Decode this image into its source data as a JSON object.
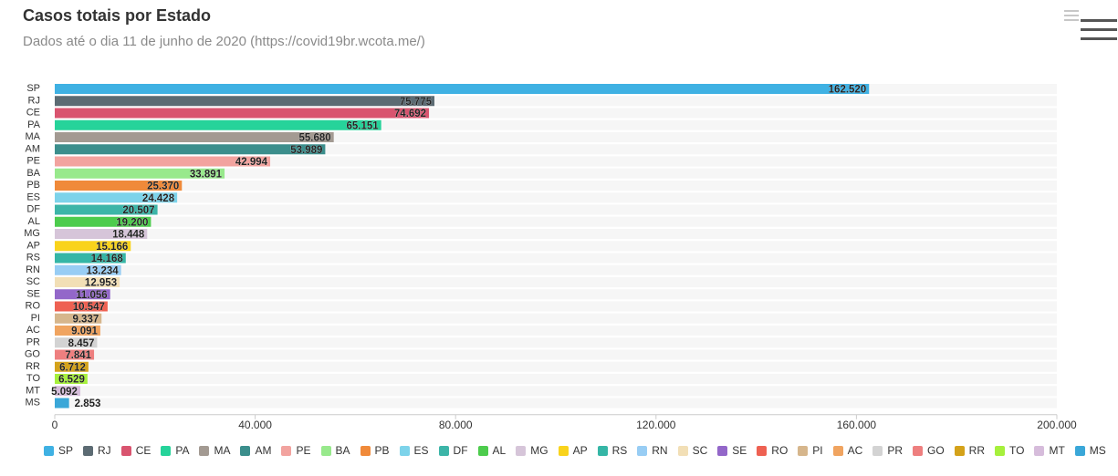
{
  "title": "Casos totais por Estado",
  "subtitle": "Dados até o dia 11 de junho de 2020 (https://covid19br.wcota.me/)",
  "menu": {
    "icon": "hamburger-menu-icon"
  },
  "chart_data": {
    "type": "bar",
    "orientation": "horizontal",
    "title": "Casos totais por Estado",
    "subtitle": "Dados até o dia 11 de junho de 2020 (https://covid19br.wcota.me/)",
    "xlim": [
      0,
      200000
    ],
    "xticks": [
      0,
      40000,
      80000,
      120000,
      160000,
      200000
    ],
    "xtick_labels": [
      "0",
      "40.000",
      "80.000",
      "120.000",
      "160.000",
      "200.000"
    ],
    "legend_position": "bottom",
    "grid": false,
    "categories": [
      "SP",
      "RJ",
      "CE",
      "PA",
      "MA",
      "AM",
      "PE",
      "BA",
      "PB",
      "ES",
      "DF",
      "AL",
      "MG",
      "AP",
      "RS",
      "RN",
      "SC",
      "SE",
      "RO",
      "PI",
      "AC",
      "PR",
      "GO",
      "RR",
      "TO",
      "MT",
      "MS"
    ],
    "values": [
      162520,
      75775,
      74692,
      65151,
      55680,
      53989,
      42994,
      33891,
      25370,
      24428,
      20507,
      19200,
      18448,
      15166,
      14168,
      13234,
      12953,
      11056,
      10547,
      9337,
      9091,
      8457,
      7841,
      6712,
      6529,
      5092,
      2853
    ],
    "value_labels": [
      "162.520",
      "75.775",
      "74.692",
      "65.151",
      "55.680",
      "53.989",
      "42.994",
      "33.891",
      "25.370",
      "24.428",
      "20.507",
      "19.200",
      "18.448",
      "15.166",
      "14.168",
      "13.234",
      "12.953",
      "11.056",
      "10.547",
      "9.337",
      "9.091",
      "8.457",
      "7.841",
      "6.712",
      "6.529",
      "5.092",
      "2.853"
    ],
    "colors": [
      "#3fb1e3",
      "#5c6b73",
      "#d9546f",
      "#26d39a",
      "#a39a92",
      "#3b8e8c",
      "#f2a39f",
      "#98e98c",
      "#f08a3a",
      "#7dd3ea",
      "#3cb5a8",
      "#4dcc4d",
      "#d6c5d9",
      "#f9d31c",
      "#35b6a6",
      "#98cdf4",
      "#f2dfb6",
      "#9367c9",
      "#ee6152",
      "#d6b68c",
      "#f0a460",
      "#d3d3d3",
      "#ee7f7f",
      "#d4a21a",
      "#a6f03c",
      "#d6bcdb",
      "#3aa7d8"
    ]
  }
}
